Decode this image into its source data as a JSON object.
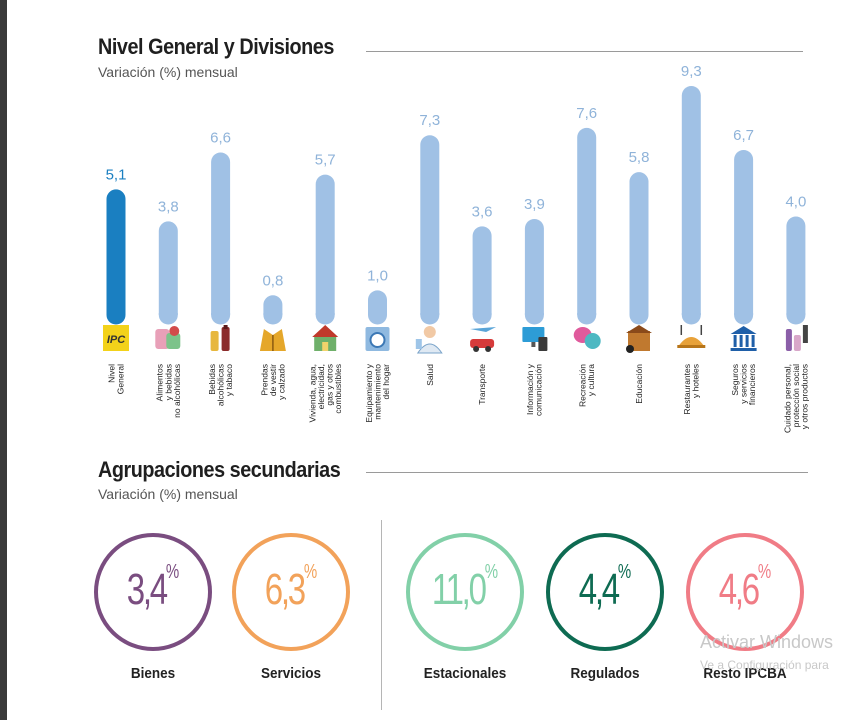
{
  "section1": {
    "title": "Nivel General y Divisiones",
    "subtitle": "Variación (%) mensual"
  },
  "section2": {
    "title": "Agrupaciones secundarias",
    "subtitle": "Variación (%) mensual"
  },
  "colors": {
    "highlight": "#1a7fc1",
    "bar": "#a0c1e5",
    "highlight_label": "#1a7fc1",
    "bar_label": "#8fb3d9"
  },
  "chart_data": {
    "type": "bar",
    "categories": [
      [
        "Nivel",
        "General"
      ],
      [
        "Alimentos",
        "y bebidas",
        "no alcohólicas"
      ],
      [
        "Bebidas",
        "alcohólicas",
        "y tabaco"
      ],
      [
        "Prendas",
        "de vestir",
        "y calzado"
      ],
      [
        "Vivienda, agua,",
        "electricidad,",
        "gas y otros",
        "combustibles"
      ],
      [
        "Equipamiento y",
        "mantenimiento",
        "del hogar"
      ],
      [
        "Salud"
      ],
      [
        "Transporte"
      ],
      [
        "Información y",
        "comunicación"
      ],
      [
        "Recreación",
        "y cultura"
      ],
      [
        "Educación"
      ],
      [
        "Restaurantes",
        "y hoteles"
      ],
      [
        "Seguros",
        "y servicios",
        "financieros"
      ],
      [
        "Cuidado personal,",
        "protección social",
        "y otros productos"
      ]
    ],
    "values": [
      5.1,
      3.8,
      6.6,
      0.8,
      5.7,
      1.0,
      7.3,
      3.6,
      3.9,
      7.6,
      5.8,
      9.3,
      6.7,
      4.0
    ],
    "value_labels": [
      "5,1",
      "3,8",
      "6,6",
      "0,8",
      "5,7",
      "1,0",
      "7,3",
      "3,6",
      "3,9",
      "7,6",
      "5,8",
      "9,3",
      "6,7",
      "4,0"
    ],
    "icons": [
      "ipc-logo-icon",
      "food-icon",
      "bottles-icon",
      "jacket-icon",
      "house-icon",
      "washing-machine-icon",
      "doctor-icon",
      "car-plane-icon",
      "computer-icon",
      "masks-icon",
      "school-icon",
      "restaurant-icon",
      "bank-icon",
      "cosmetics-icon"
    ],
    "highlight_index": 0,
    "ylim": [
      0,
      9.3
    ]
  },
  "groups": [
    {
      "value": "3,4",
      "unit": "%",
      "label": "Bienes",
      "color": "#7a4d80"
    },
    {
      "value": "6,3",
      "unit": "%",
      "label": "Servicios",
      "color": "#f2a25a"
    },
    {
      "value": "11,0",
      "unit": "%",
      "label": "Estacionales",
      "color": "#82d0a8"
    },
    {
      "value": "4,4",
      "unit": "%",
      "label": "Regulados",
      "color": "#0e6b52"
    },
    {
      "value": "4,6",
      "unit": "%",
      "label": "Resto IPCBA",
      "color": "#f07c86"
    }
  ],
  "watermark": {
    "line1": "Activar Windows",
    "line2": "Ve a Configuración para"
  }
}
